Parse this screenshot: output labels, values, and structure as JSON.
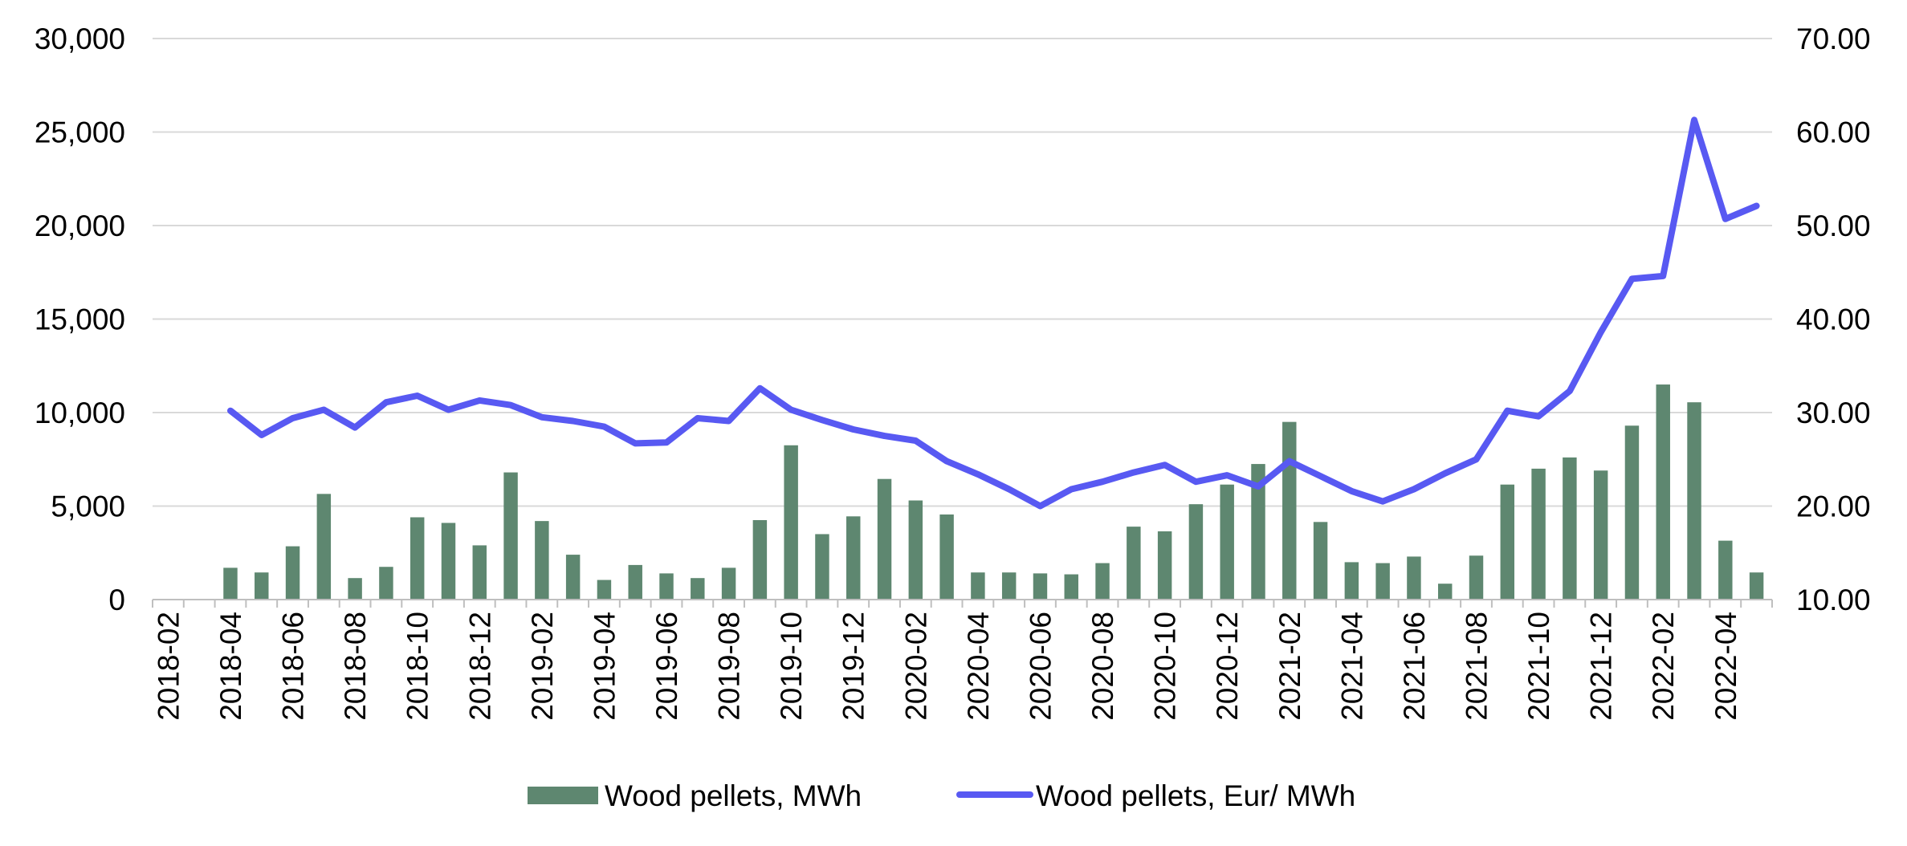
{
  "chart_data": {
    "type": "bar",
    "title": "",
    "xlabel": "",
    "ylabel": "",
    "x": [
      "2018-02",
      "2018-03",
      "2018-04",
      "2018-05",
      "2018-06",
      "2018-07",
      "2018-08",
      "2018-09",
      "2018-10",
      "2018-11",
      "2018-12",
      "2019-01",
      "2019-02",
      "2019-03",
      "2019-04",
      "2019-05",
      "2019-06",
      "2019-07",
      "2019-08",
      "2019-09",
      "2019-10",
      "2019-11",
      "2019-12",
      "2020-01",
      "2020-02",
      "2020-03",
      "2020-04",
      "2020-05",
      "2020-06",
      "2020-07",
      "2020-08",
      "2020-09",
      "2020-10",
      "2020-11",
      "2020-12",
      "2021-01",
      "2021-02",
      "2021-03",
      "2021-04",
      "2021-05",
      "2021-06",
      "2021-07",
      "2021-08",
      "2021-09",
      "2021-10",
      "2021-11",
      "2021-12",
      "2022-01",
      "2022-02",
      "2022-03",
      "2022-04",
      "2022-05"
    ],
    "x_tick_labels": [
      "2018-02",
      "2018-04",
      "2018-06",
      "2018-08",
      "2018-10",
      "2018-12",
      "2019-02",
      "2019-04",
      "2019-06",
      "2019-08",
      "2019-10",
      "2019-12",
      "2020-02",
      "2020-04",
      "2020-06",
      "2020-08",
      "2020-10",
      "2020-12",
      "2021-02",
      "2021-04",
      "2021-06",
      "2021-08",
      "2021-10",
      "2021-12",
      "2022-02",
      "2022-04"
    ],
    "y_left": {
      "ylim": [
        0,
        30000
      ],
      "ticks": [
        0,
        5000,
        10000,
        15000,
        20000,
        25000,
        30000
      ],
      "tick_labels": [
        "0",
        "5,000",
        "10,000",
        "15,000",
        "20,000",
        "25,000",
        "30,000"
      ]
    },
    "y_right": {
      "ylim": [
        10,
        70
      ],
      "ticks": [
        10,
        20,
        30,
        40,
        50,
        60,
        70
      ],
      "tick_labels": [
        "10.00",
        "20.00",
        "30.00",
        "40.00",
        "50.00",
        "60.00",
        "70.00"
      ]
    },
    "grid": true,
    "legend": "bottom",
    "series": [
      {
        "name": "Wood pellets, MWh",
        "type": "bar",
        "axis": "left",
        "color": "#5e8770",
        "values": [
          null,
          null,
          1700,
          1450,
          2850,
          5650,
          1150,
          1750,
          4400,
          4100,
          2900,
          6800,
          4200,
          2400,
          1050,
          1850,
          1400,
          1150,
          1700,
          4250,
          8250,
          3500,
          4450,
          6450,
          5300,
          4550,
          1450,
          1450,
          1400,
          1350,
          1950,
          3900,
          3650,
          5100,
          6150,
          7250,
          9500,
          4150,
          2000,
          1950,
          2300,
          850,
          2350,
          6150,
          7000,
          7600,
          6900,
          9300,
          11500,
          10550,
          3150,
          1450
        ]
      },
      {
        "name": "Wood pellets, Eur/ MWh",
        "type": "line",
        "axis": "right",
        "color": "#5859f2",
        "values": [
          null,
          null,
          30.2,
          27.6,
          29.4,
          30.3,
          28.4,
          31.1,
          31.8,
          30.3,
          31.3,
          30.8,
          29.5,
          29.1,
          28.5,
          26.7,
          26.8,
          29.4,
          29.1,
          32.6,
          30.3,
          29.2,
          28.2,
          27.5,
          27.0,
          24.8,
          23.4,
          21.8,
          20.0,
          21.8,
          22.6,
          23.6,
          24.4,
          22.6,
          23.3,
          22.1,
          24.8,
          23.2,
          21.6,
          20.5,
          21.8,
          23.5,
          25.0,
          30.2,
          29.6,
          32.3,
          38.6,
          44.3,
          44.6,
          61.3,
          50.7,
          52.1
        ]
      }
    ]
  }
}
